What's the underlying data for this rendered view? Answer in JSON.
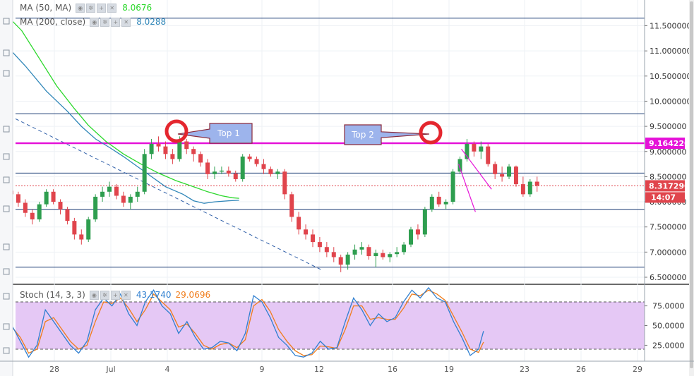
{
  "legend": {
    "ma50": {
      "label": "MA (50, MA)",
      "value": "8.0676",
      "color": "#2bd82b"
    },
    "ma200": {
      "label": "MA (200, close)",
      "value": "8.0288",
      "color": "#2f86b8"
    },
    "stoch": {
      "label": "Stoch (14, 3, 3)",
      "k_value": "43.1740",
      "d_value": "29.0696",
      "k_color": "#2f7fd0",
      "d_color": "#f07d1c"
    }
  },
  "colors": {
    "up": "#2e9e4f",
    "down": "#e0444c",
    "magenta": "#e512d8",
    "navy": "#1a3b75",
    "callout": "#9db4ec",
    "circle": "#e4262e"
  },
  "chart_data": [
    {
      "type": "candlestick",
      "price_axis": {
        "min": 6.25,
        "max": 11.8,
        "ticks": [
          "11.500000",
          "11.000000",
          "10.500000",
          "10.000000",
          "9.500000",
          "9.000000",
          "8.500000",
          "8.000000",
          "7.500000",
          "7.000000",
          "6.500000"
        ]
      },
      "tags": {
        "resistance": "9.164220",
        "last_price": "8.317290",
        "countdown": "14:07"
      },
      "x_axis": {
        "labels": [
          "28",
          "Jul",
          "4",
          "9",
          "12",
          "16",
          "19",
          "23",
          "26",
          "29"
        ]
      },
      "horizontal_levels": [
        11.65,
        9.75,
        8.57,
        7.85,
        6.7
      ],
      "resistance_level": 9.16422,
      "last_price": 8.31729,
      "annotations": [
        {
          "text": "Top 1"
        },
        {
          "text": "Top 2"
        }
      ],
      "ma50": [
        [
          -2,
          11.9
        ],
        [
          1.5,
          11.4
        ],
        [
          4,
          10.85
        ],
        [
          6.5,
          10.3
        ],
        [
          9,
          9.85
        ],
        [
          11,
          9.52
        ],
        [
          13.5,
          9.2
        ],
        [
          16,
          8.95
        ],
        [
          18.5,
          8.75
        ],
        [
          21,
          8.57
        ],
        [
          23.5,
          8.42
        ],
        [
          26,
          8.3
        ],
        [
          28,
          8.2
        ],
        [
          30,
          8.12
        ],
        [
          31.5,
          8.08
        ],
        [
          32.5,
          8.07
        ]
      ],
      "ma200": [
        [
          -2,
          11.3
        ],
        [
          2,
          10.7
        ],
        [
          5,
          10.2
        ],
        [
          8,
          9.8
        ],
        [
          10,
          9.5
        ],
        [
          12,
          9.25
        ],
        [
          14,
          9.08
        ],
        [
          16,
          8.9
        ],
        [
          18,
          8.7
        ],
        [
          20,
          8.5
        ],
        [
          22,
          8.3
        ],
        [
          24.5,
          8.15
        ],
        [
          26,
          8.02
        ],
        [
          27.5,
          7.97
        ],
        [
          29,
          8.0
        ],
        [
          31,
          8.02
        ],
        [
          32.5,
          8.03
        ]
      ],
      "candles": [
        [
          8.22,
          8.35,
          8.05,
          8.15
        ],
        [
          8.15,
          8.2,
          7.9,
          7.98
        ],
        [
          7.98,
          8.05,
          7.7,
          7.78
        ],
        [
          7.78,
          7.85,
          7.55,
          7.65
        ],
        [
          7.65,
          8.0,
          7.6,
          7.95
        ],
        [
          7.95,
          8.25,
          7.9,
          8.2
        ],
        [
          8.2,
          8.25,
          7.95,
          8.0
        ],
        [
          8.0,
          8.05,
          7.75,
          7.85
        ],
        [
          7.85,
          7.9,
          7.55,
          7.62
        ],
        [
          7.62,
          7.68,
          7.25,
          7.35
        ],
        [
          7.35,
          7.45,
          7.15,
          7.25
        ],
        [
          7.25,
          7.7,
          7.2,
          7.65
        ],
        [
          7.65,
          8.15,
          7.6,
          8.1
        ],
        [
          8.1,
          8.3,
          8.0,
          8.2
        ],
        [
          8.2,
          8.4,
          8.1,
          8.3
        ],
        [
          8.3,
          8.35,
          8.05,
          8.12
        ],
        [
          8.12,
          8.2,
          7.9,
          7.98
        ],
        [
          7.98,
          8.15,
          7.85,
          8.1
        ],
        [
          8.1,
          8.3,
          8.0,
          8.2
        ],
        [
          8.2,
          9.05,
          8.15,
          8.95
        ],
        [
          8.95,
          9.25,
          8.85,
          9.15
        ],
        [
          9.15,
          9.3,
          9.0,
          9.1
        ],
        [
          9.1,
          9.2,
          8.85,
          8.95
        ],
        [
          8.95,
          9.05,
          8.75,
          8.85
        ],
        [
          8.85,
          9.3,
          8.8,
          9.2
        ],
        [
          9.2,
          9.25,
          8.95,
          9.05
        ],
        [
          9.05,
          9.1,
          8.8,
          8.95
        ],
        [
          8.95,
          9.0,
          8.7,
          8.78
        ],
        [
          8.78,
          8.85,
          8.45,
          8.55
        ],
        [
          8.55,
          8.7,
          8.45,
          8.6
        ],
        [
          8.6,
          8.7,
          8.55,
          8.62
        ],
        [
          8.62,
          8.7,
          8.5,
          8.56
        ],
        [
          8.56,
          8.62,
          8.4,
          8.45
        ],
        [
          8.45,
          8.95,
          8.4,
          8.9
        ],
        [
          8.9,
          8.95,
          8.8,
          8.85
        ],
        [
          8.85,
          8.9,
          8.7,
          8.75
        ],
        [
          8.75,
          8.85,
          8.55,
          8.65
        ],
        [
          8.65,
          8.7,
          8.5,
          8.55
        ],
        [
          8.55,
          8.65,
          8.45,
          8.6
        ],
        [
          8.6,
          8.65,
          8.05,
          8.15
        ],
        [
          8.15,
          8.2,
          7.6,
          7.7
        ],
        [
          7.7,
          7.8,
          7.35,
          7.45
        ],
        [
          7.45,
          7.55,
          7.25,
          7.35
        ],
        [
          7.35,
          7.45,
          7.1,
          7.2
        ],
        [
          7.2,
          7.3,
          7.0,
          7.1
        ],
        [
          7.1,
          7.2,
          6.9,
          7.0
        ],
        [
          7.0,
          7.1,
          6.8,
          6.9
        ],
        [
          6.9,
          6.95,
          6.6,
          6.75
        ],
        [
          6.75,
          7.0,
          6.65,
          6.95
        ],
        [
          6.95,
          7.15,
          6.85,
          7.05
        ],
        [
          7.05,
          7.2,
          6.95,
          7.1
        ],
        [
          7.1,
          7.15,
          6.85,
          6.92
        ],
        [
          6.92,
          7.05,
          6.7,
          6.98
        ],
        [
          6.98,
          7.05,
          6.85,
          6.9
        ],
        [
          6.9,
          7.0,
          6.8,
          6.96
        ],
        [
          6.96,
          7.1,
          6.9,
          7.0
        ],
        [
          7.0,
          7.2,
          6.95,
          7.15
        ],
        [
          7.15,
          7.5,
          7.1,
          7.45
        ],
        [
          7.45,
          7.55,
          7.25,
          7.35
        ],
        [
          7.35,
          7.9,
          7.3,
          7.85
        ],
        [
          7.85,
          8.15,
          7.8,
          8.1
        ],
        [
          8.1,
          8.2,
          7.9,
          7.95
        ],
        [
          7.95,
          8.05,
          7.85,
          8.0
        ],
        [
          8.0,
          8.65,
          7.95,
          8.6
        ],
        [
          8.6,
          8.9,
          8.55,
          8.85
        ],
        [
          8.85,
          9.25,
          8.8,
          9.15
        ],
        [
          9.15,
          9.2,
          8.9,
          9.0
        ],
        [
          9.0,
          9.2,
          8.85,
          9.1
        ],
        [
          9.1,
          9.15,
          8.7,
          8.75
        ],
        [
          8.75,
          8.8,
          8.45,
          8.55
        ],
        [
          8.55,
          8.7,
          8.4,
          8.5
        ],
        [
          8.5,
          8.75,
          8.45,
          8.7
        ],
        [
          8.7,
          8.72,
          8.3,
          8.35
        ],
        [
          8.35,
          8.5,
          8.1,
          8.15
        ],
        [
          8.15,
          8.45,
          8.1,
          8.4
        ],
        [
          8.4,
          8.5,
          8.2,
          8.32
        ]
      ]
    },
    {
      "type": "line",
      "name": "Stoch (14, 3, 3)",
      "y_axis": {
        "min": 0,
        "max": 100,
        "ticks": [
          "75.0000",
          "50.0000",
          "25.0000"
        ]
      },
      "band": [
        80,
        20
      ],
      "k": [
        [
          -2,
          50
        ],
        [
          -1,
          30
        ],
        [
          0,
          10
        ],
        [
          1,
          25
        ],
        [
          2,
          70
        ],
        [
          3,
          55
        ],
        [
          4,
          40
        ],
        [
          5,
          25
        ],
        [
          6,
          15
        ],
        [
          7,
          30
        ],
        [
          8,
          70
        ],
        [
          9,
          85
        ],
        [
          10,
          75
        ],
        [
          11,
          90
        ],
        [
          12,
          65
        ],
        [
          13,
          50
        ],
        [
          14,
          80
        ],
        [
          15,
          95
        ],
        [
          16,
          75
        ],
        [
          17,
          65
        ],
        [
          18,
          40
        ],
        [
          19,
          55
        ],
        [
          20,
          35
        ],
        [
          21,
          20
        ],
        [
          22,
          22
        ],
        [
          23,
          30
        ],
        [
          24,
          28
        ],
        [
          25,
          18
        ],
        [
          26,
          40
        ],
        [
          27,
          88
        ],
        [
          28,
          80
        ],
        [
          29,
          60
        ],
        [
          30,
          35
        ],
        [
          31,
          25
        ],
        [
          32,
          12
        ],
        [
          33,
          10
        ],
        [
          34,
          15
        ],
        [
          35,
          30
        ],
        [
          36,
          20
        ],
        [
          37,
          22
        ],
        [
          38,
          55
        ],
        [
          39,
          85
        ],
        [
          40,
          70
        ],
        [
          41,
          50
        ],
        [
          42,
          65
        ],
        [
          43,
          55
        ],
        [
          44,
          60
        ],
        [
          45,
          80
        ],
        [
          46,
          95
        ],
        [
          47,
          85
        ],
        [
          48,
          98
        ],
        [
          49,
          85
        ],
        [
          50,
          80
        ],
        [
          51,
          55
        ],
        [
          52,
          35
        ],
        [
          53,
          12
        ],
        [
          54,
          20
        ],
        [
          54.6,
          43
        ]
      ],
      "d": [
        [
          -2,
          48
        ],
        [
          -1,
          35
        ],
        [
          0,
          15
        ],
        [
          1,
          20
        ],
        [
          2,
          55
        ],
        [
          3,
          60
        ],
        [
          4,
          45
        ],
        [
          5,
          30
        ],
        [
          6,
          20
        ],
        [
          7,
          25
        ],
        [
          8,
          55
        ],
        [
          9,
          80
        ],
        [
          10,
          78
        ],
        [
          11,
          85
        ],
        [
          12,
          72
        ],
        [
          13,
          55
        ],
        [
          14,
          70
        ],
        [
          15,
          90
        ],
        [
          16,
          80
        ],
        [
          17,
          70
        ],
        [
          18,
          48
        ],
        [
          19,
          52
        ],
        [
          20,
          40
        ],
        [
          21,
          25
        ],
        [
          22,
          20
        ],
        [
          23,
          26
        ],
        [
          24,
          28
        ],
        [
          25,
          22
        ],
        [
          26,
          32
        ],
        [
          27,
          75
        ],
        [
          28,
          83
        ],
        [
          29,
          68
        ],
        [
          30,
          45
        ],
        [
          31,
          30
        ],
        [
          32,
          18
        ],
        [
          33,
          12
        ],
        [
          34,
          13
        ],
        [
          35,
          24
        ],
        [
          36,
          23
        ],
        [
          37,
          21
        ],
        [
          38,
          45
        ],
        [
          39,
          75
        ],
        [
          40,
          75
        ],
        [
          41,
          58
        ],
        [
          42,
          60
        ],
        [
          43,
          58
        ],
        [
          44,
          58
        ],
        [
          45,
          72
        ],
        [
          46,
          90
        ],
        [
          47,
          88
        ],
        [
          48,
          95
        ],
        [
          49,
          90
        ],
        [
          50,
          82
        ],
        [
          51,
          62
        ],
        [
          52,
          42
        ],
        [
          53,
          20
        ],
        [
          54,
          16
        ],
        [
          54.6,
          29
        ]
      ]
    }
  ]
}
